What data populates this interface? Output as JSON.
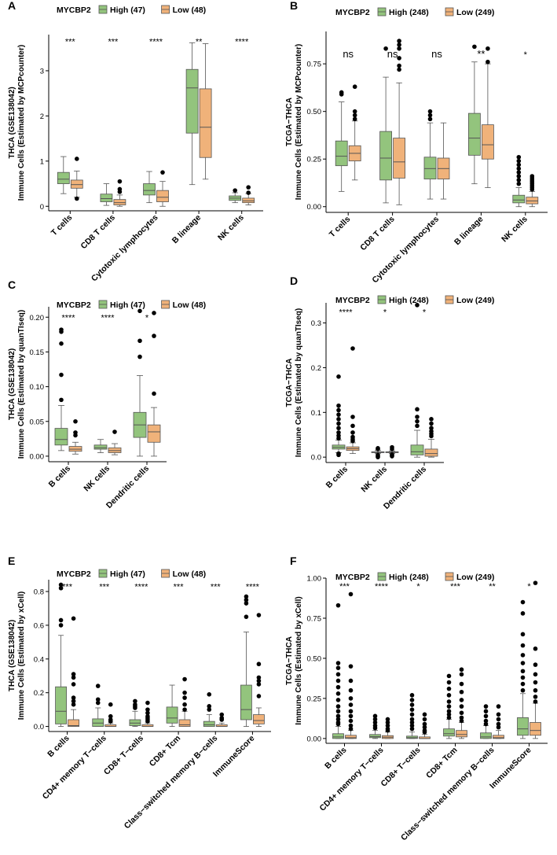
{
  "colors": {
    "high": "#93c47d",
    "low": "#f0b27a",
    "stroke": "#555555"
  },
  "legend": {
    "title": "MYCBP2",
    "high_label": "High",
    "low_label": "Low"
  },
  "chart_data": [
    {
      "panel": "A",
      "type": "box",
      "ylabel_line1": "THCA (GSE138042)",
      "ylabel_line2": "Immune Cells (Estimated by MCPcounter)",
      "legend_high": "High (47)",
      "legend_low": "Low (48)",
      "ylim": [
        -0.1,
        3.8
      ],
      "yticks": [
        0,
        1,
        2,
        3
      ],
      "categories": [
        "T cells",
        "CD8 T cells",
        "Cytotoxic lymphocytes",
        "B lineage",
        "NK cells"
      ],
      "significance": [
        "***",
        "***",
        "****",
        "**",
        "****"
      ],
      "sig_y": 3.65,
      "high": [
        {
          "min": 0.28,
          "q1": 0.5,
          "med": 0.6,
          "q3": 0.75,
          "max": 1.1,
          "out": []
        },
        {
          "min": 0.02,
          "q1": 0.1,
          "med": 0.17,
          "q3": 0.27,
          "max": 0.5,
          "out": []
        },
        {
          "min": 0.08,
          "q1": 0.25,
          "med": 0.35,
          "q3": 0.5,
          "max": 0.77,
          "out": []
        },
        {
          "min": 0.48,
          "q1": 1.62,
          "med": 2.62,
          "q3": 3.03,
          "max": 3.62,
          "out": []
        },
        {
          "min": 0.08,
          "q1": 0.13,
          "med": 0.18,
          "q3": 0.23,
          "max": 0.3,
          "out": [
            0.35
          ]
        }
      ],
      "low": [
        {
          "min": 0.2,
          "q1": 0.4,
          "med": 0.48,
          "q3": 0.58,
          "max": 0.78,
          "out": [
            1.05,
            0.17
          ]
        },
        {
          "min": 0.0,
          "q1": 0.03,
          "med": 0.08,
          "q3": 0.15,
          "max": 0.25,
          "out": [
            0.55,
            0.38,
            0.32
          ]
        },
        {
          "min": 0.0,
          "q1": 0.1,
          "med": 0.2,
          "q3": 0.35,
          "max": 0.55,
          "out": [
            0.75
          ]
        },
        {
          "min": 0.6,
          "q1": 1.08,
          "med": 1.75,
          "q3": 2.6,
          "max": 3.6,
          "out": []
        },
        {
          "min": 0.03,
          "q1": 0.08,
          "med": 0.12,
          "q3": 0.18,
          "max": 0.28,
          "out": [
            0.42,
            0.3
          ]
        }
      ]
    },
    {
      "panel": "B",
      "type": "box",
      "ylabel_line1": "TCGA−THCA",
      "ylabel_line2": "Immune Cells (Estimated by MCPcounter)",
      "legend_high": "High (248)",
      "legend_low": "Low (249)",
      "ylim": [
        -0.03,
        0.92
      ],
      "yticks": [
        0.0,
        0.25,
        0.5,
        0.75
      ],
      "ytick_labels": [
        "0.00",
        "0.25",
        "0.50",
        "0.75"
      ],
      "categories": [
        "T cells",
        "CD8 T cells",
        "Cytotoxic lymphocytes",
        "B lineage",
        "NK cells"
      ],
      "significance": [
        "ns",
        "ns",
        "ns",
        "**",
        "*"
      ],
      "sig_sizes": [
        "big",
        "big",
        "big",
        "big",
        "small"
      ],
      "sig_y": 0.8,
      "high": [
        {
          "min": 0.08,
          "q1": 0.215,
          "med": 0.265,
          "q3": 0.345,
          "max": 0.55,
          "out": [
            0.6,
            0.59
          ]
        },
        {
          "min": 0.02,
          "q1": 0.14,
          "med": 0.255,
          "q3": 0.395,
          "max": 0.68,
          "out": [
            0.83
          ]
        },
        {
          "min": 0.04,
          "q1": 0.145,
          "med": 0.2,
          "q3": 0.26,
          "max": 0.44,
          "out": [
            0.5,
            0.48,
            0.46
          ]
        },
        {
          "min": 0.12,
          "q1": 0.27,
          "med": 0.36,
          "q3": 0.49,
          "max": 0.76,
          "out": [
            0.84
          ]
        },
        {
          "min": 0.0,
          "q1": 0.02,
          "med": 0.035,
          "q3": 0.06,
          "max": 0.1,
          "out": [
            0.26,
            0.24,
            0.22,
            0.2,
            0.18,
            0.16,
            0.14,
            0.12
          ]
        }
      ],
      "low": [
        {
          "min": 0.14,
          "q1": 0.24,
          "med": 0.28,
          "q3": 0.32,
          "max": 0.45,
          "out": [
            0.63,
            0.5,
            0.48,
            0.46
          ]
        },
        {
          "min": 0.01,
          "q1": 0.15,
          "med": 0.235,
          "q3": 0.36,
          "max": 0.65,
          "out": [
            0.87,
            0.85,
            0.83,
            0.78,
            0.74,
            0.72
          ]
        },
        {
          "min": 0.04,
          "q1": 0.145,
          "med": 0.2,
          "q3": 0.255,
          "max": 0.44,
          "out": []
        },
        {
          "min": 0.1,
          "q1": 0.25,
          "med": 0.325,
          "q3": 0.43,
          "max": 0.75,
          "out": [
            0.83,
            0.76
          ]
        },
        {
          "min": 0.0,
          "q1": 0.015,
          "med": 0.03,
          "q3": 0.05,
          "max": 0.08,
          "out": [
            0.16,
            0.15,
            0.14,
            0.13,
            0.12,
            0.11,
            0.1,
            0.09
          ]
        }
      ]
    },
    {
      "panel": "C",
      "type": "box",
      "ylabel_line1": "THCA (GSE138042)",
      "ylabel_line2": "Immune Cells (Estimated by quanTIseq)",
      "legend_high": "High (47)",
      "legend_low": "Low (48)",
      "ylim": [
        -0.008,
        0.215
      ],
      "yticks": [
        0.0,
        0.05,
        0.1,
        0.15,
        0.2
      ],
      "ytick_labels": [
        "0.00",
        "0.05",
        "0.10",
        "0.15",
        "0.20"
      ],
      "categories": [
        "B cells",
        "NK cells",
        "Dendritic cells"
      ],
      "significance": [
        "****",
        "****",
        "*"
      ],
      "sig_y": 0.2,
      "high": [
        {
          "min": 0.008,
          "q1": 0.016,
          "med": 0.024,
          "q3": 0.04,
          "max": 0.073,
          "out": [
            0.182,
            0.179,
            0.162,
            0.117,
            0.081
          ]
        },
        {
          "min": 0.005,
          "q1": 0.01,
          "med": 0.012,
          "q3": 0.016,
          "max": 0.024,
          "out": []
        },
        {
          "min": 0.0,
          "q1": 0.027,
          "med": 0.045,
          "q3": 0.063,
          "max": 0.116,
          "out": [
            0.209,
            0.166,
            0.143
          ]
        }
      ],
      "low": [
        {
          "min": 0.003,
          "q1": 0.007,
          "med": 0.01,
          "q3": 0.014,
          "max": 0.02,
          "out": [
            0.05,
            0.034,
            0.03
          ]
        },
        {
          "min": 0.002,
          "q1": 0.005,
          "med": 0.008,
          "q3": 0.012,
          "max": 0.018,
          "out": [
            0.035
          ]
        },
        {
          "min": 0.0,
          "q1": 0.02,
          "med": 0.035,
          "q3": 0.045,
          "max": 0.07,
          "out": [
            0.206,
            0.173,
            0.09
          ]
        }
      ]
    },
    {
      "panel": "D",
      "type": "box",
      "ylabel_line1": "TCGA−THCA",
      "ylabel_line2": "Immune Cells (Estimated by quanTIseq)",
      "legend_high": "High (248)",
      "legend_low": "Low (249)",
      "ylim": [
        -0.012,
        0.345
      ],
      "yticks": [
        0.0,
        0.1,
        0.2,
        0.3
      ],
      "ytick_labels": [
        "0.0",
        "0.1",
        "0.2",
        "0.3"
      ],
      "categories": [
        "B cells",
        "NK cells",
        "Dendritic cells"
      ],
      "significance": [
        "****",
        "*",
        "*"
      ],
      "sig_y": 0.325,
      "high": [
        {
          "min": 0.01,
          "q1": 0.018,
          "med": 0.022,
          "q3": 0.027,
          "max": 0.038,
          "out": [
            0.18,
            0.115,
            0.105,
            0.095,
            0.085,
            0.075,
            0.065,
            0.055,
            0.048,
            0.042,
            0.008,
            0.005
          ]
        },
        {
          "min": 0.008,
          "q1": 0.01,
          "med": 0.011,
          "q3": 0.012,
          "max": 0.015,
          "out": [
            0.02,
            0.018,
            0.005,
            0.002,
            0.0
          ]
        },
        {
          "min": 0.0,
          "q1": 0.005,
          "med": 0.012,
          "q3": 0.027,
          "max": 0.06,
          "out": [
            0.34,
            0.107,
            0.09,
            0.08,
            0.07
          ]
        }
      ],
      "low": [
        {
          "min": 0.008,
          "q1": 0.015,
          "med": 0.019,
          "q3": 0.023,
          "max": 0.032,
          "out": [
            0.243,
            0.09,
            0.07,
            0.055,
            0.045,
            0.04,
            0.036
          ]
        },
        {
          "min": 0.008,
          "q1": 0.01,
          "med": 0.011,
          "q3": 0.012,
          "max": 0.014,
          "out": [
            0.022,
            0.018,
            0.006,
            0.004,
            0.002
          ]
        },
        {
          "min": 0.0,
          "q1": 0.002,
          "med": 0.008,
          "q3": 0.018,
          "max": 0.04,
          "out": [
            0.085,
            0.075,
            0.065,
            0.058,
            0.052,
            0.047
          ]
        }
      ]
    },
    {
      "panel": "E",
      "type": "box",
      "ylabel_line1": "THCA (GSE138042)",
      "ylabel_line2": "Immune Cells (Estimated by xCell)",
      "legend_high": "High (47)",
      "legend_low": "Low (48)",
      "ylim": [
        -0.03,
        0.87
      ],
      "yticks": [
        0.0,
        0.2,
        0.4,
        0.6,
        0.8
      ],
      "ytick_labels": [
        "0.0",
        "0.2",
        "0.4",
        "0.6",
        "0.8"
      ],
      "categories": [
        "B cells",
        "CD4+ memory T−cells",
        "CD8+ T−cells",
        "CD8+ Tcm",
        "Class−switched memory B−cells",
        "ImmuneScore"
      ],
      "significance": [
        "***",
        "***",
        "****",
        "***",
        "***",
        "****"
      ],
      "sig_y": 0.83,
      "high": [
        {
          "min": 0.0,
          "q1": 0.015,
          "med": 0.09,
          "q3": 0.235,
          "max": 0.54,
          "out": [
            0.84,
            0.82,
            0.63,
            0.6
          ]
        },
        {
          "min": 0.0,
          "q1": 0.0,
          "med": 0.02,
          "q3": 0.045,
          "max": 0.11,
          "out": [
            0.24,
            0.16,
            0.14
          ]
        },
        {
          "min": 0.0,
          "q1": 0.005,
          "med": 0.02,
          "q3": 0.04,
          "max": 0.09,
          "out": [
            0.15,
            0.13,
            0.12,
            0.11
          ]
        },
        {
          "min": 0.0,
          "q1": 0.02,
          "med": 0.05,
          "q3": 0.115,
          "max": 0.245,
          "out": []
        },
        {
          "min": 0.0,
          "q1": 0.0,
          "med": 0.01,
          "q3": 0.03,
          "max": 0.07,
          "out": [
            0.19,
            0.12,
            0.1
          ]
        },
        {
          "min": 0.0,
          "q1": 0.04,
          "med": 0.1,
          "q3": 0.245,
          "max": 0.56,
          "out": [
            0.77,
            0.75,
            0.73,
            0.65
          ]
        }
      ],
      "low": [
        {
          "min": 0.0,
          "q1": 0.0,
          "med": 0.005,
          "q3": 0.04,
          "max": 0.1,
          "out": [
            0.64,
            0.31,
            0.29,
            0.25,
            0.17,
            0.15,
            0.13
          ]
        },
        {
          "min": 0.0,
          "q1": 0.0,
          "med": 0.0,
          "q3": 0.01,
          "max": 0.02,
          "out": [
            0.13,
            0.06,
            0.04,
            0.03
          ]
        },
        {
          "min": 0.0,
          "q1": 0.0,
          "med": 0.0,
          "q3": 0.01,
          "max": 0.02,
          "out": [
            0.14,
            0.1,
            0.08,
            0.06,
            0.05,
            0.04,
            0.03
          ]
        },
        {
          "min": 0.0,
          "q1": 0.0,
          "med": 0.01,
          "q3": 0.04,
          "max": 0.09,
          "out": [
            0.28,
            0.2,
            0.17,
            0.13,
            0.1
          ]
        },
        {
          "min": 0.0,
          "q1": 0.0,
          "med": 0.0,
          "q3": 0.01,
          "max": 0.02,
          "out": [
            0.07,
            0.05,
            0.04
          ]
        },
        {
          "min": 0.0,
          "q1": 0.015,
          "med": 0.035,
          "q3": 0.07,
          "max": 0.11,
          "out": [
            0.66,
            0.37,
            0.29,
            0.27,
            0.25,
            0.18
          ]
        }
      ]
    },
    {
      "panel": "F",
      "type": "box",
      "ylabel_line1": "TCGA−THCA",
      "ylabel_line2": "Immune Cells (Estimated by xCell)",
      "legend_high": "High (248)",
      "legend_low": "Low (249)",
      "ylim": [
        -0.03,
        1.0
      ],
      "yticks": [
        0.0,
        0.25,
        0.5,
        0.75,
        1.0
      ],
      "ytick_labels": [
        "0.00",
        "0.25",
        "0.50",
        "0.75",
        "1.00"
      ],
      "categories": [
        "B cells",
        "CD4+ memory T−cells",
        "CD8+ T−cells",
        "CD8+ Tcm",
        "Class−switched memory B−cells",
        "ImmuneScore"
      ],
      "significance": [
        "***",
        "****",
        "*",
        "***",
        "**",
        "*"
      ],
      "sig_y": 0.95,
      "high": [
        {
          "min": 0.0,
          "q1": 0.0,
          "med": 0.01,
          "q3": 0.03,
          "max": 0.075,
          "out": [
            0.83,
            0.47,
            0.44,
            0.4,
            0.36,
            0.32,
            0.28,
            0.24,
            0.2,
            0.17,
            0.14,
            0.12,
            0.1,
            0.09
          ]
        },
        {
          "min": 0.0,
          "q1": 0.005,
          "med": 0.012,
          "q3": 0.025,
          "max": 0.05,
          "out": [
            0.14,
            0.12,
            0.1,
            0.08,
            0.065
          ]
        },
        {
          "min": 0.0,
          "q1": 0.0,
          "med": 0.005,
          "q3": 0.015,
          "max": 0.04,
          "out": [
            0.27,
            0.24,
            0.21,
            0.18,
            0.15,
            0.12,
            0.1,
            0.08,
            0.06
          ]
        },
        {
          "min": 0.0,
          "q1": 0.015,
          "med": 0.03,
          "q3": 0.06,
          "max": 0.12,
          "out": [
            0.39,
            0.35,
            0.31,
            0.27,
            0.23,
            0.2,
            0.17,
            0.15,
            0.13
          ]
        },
        {
          "min": 0.0,
          "q1": 0.0,
          "med": 0.01,
          "q3": 0.035,
          "max": 0.08,
          "out": [
            0.2,
            0.17,
            0.14,
            0.11,
            0.09
          ]
        },
        {
          "min": 0.0,
          "q1": 0.02,
          "med": 0.06,
          "q3": 0.13,
          "max": 0.28,
          "out": [
            0.85,
            0.78,
            0.65,
            0.58,
            0.52,
            0.47,
            0.42,
            0.38,
            0.34,
            0.3
          ]
        }
      ],
      "low": [
        {
          "min": 0.0,
          "q1": 0.0,
          "med": 0.005,
          "q3": 0.02,
          "max": 0.05,
          "out": [
            0.9,
            0.45,
            0.36,
            0.3,
            0.25,
            0.21,
            0.17,
            0.14,
            0.11,
            0.08,
            0.06
          ]
        },
        {
          "min": 0.0,
          "q1": 0.0,
          "med": 0.008,
          "q3": 0.018,
          "max": 0.04,
          "out": [
            0.12,
            0.1,
            0.08,
            0.06,
            0.05
          ]
        },
        {
          "min": 0.0,
          "q1": 0.0,
          "med": 0.0,
          "q3": 0.01,
          "max": 0.025,
          "out": [
            0.15,
            0.12,
            0.09,
            0.07,
            0.05,
            0.04
          ]
        },
        {
          "min": 0.0,
          "q1": 0.01,
          "med": 0.025,
          "q3": 0.05,
          "max": 0.1,
          "out": [
            0.43,
            0.4,
            0.34,
            0.29,
            0.24,
            0.2,
            0.16,
            0.13,
            0.11
          ]
        },
        {
          "min": 0.0,
          "q1": 0.0,
          "med": 0.005,
          "q3": 0.02,
          "max": 0.05,
          "out": [
            0.2,
            0.15,
            0.12,
            0.09,
            0.07
          ]
        },
        {
          "min": 0.0,
          "q1": 0.02,
          "med": 0.05,
          "q3": 0.1,
          "max": 0.22,
          "out": [
            0.97,
            0.56,
            0.46,
            0.4,
            0.35,
            0.3,
            0.26,
            0.23
          ]
        }
      ]
    }
  ]
}
